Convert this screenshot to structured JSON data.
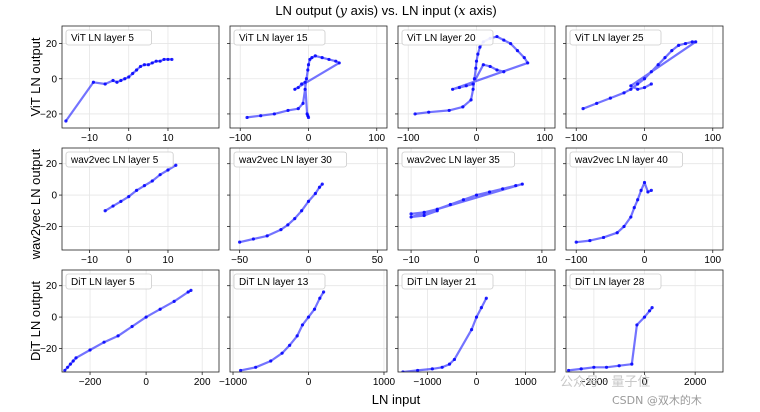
{
  "chart_data": {
    "type": "scatter",
    "title": "LN output (y axis) vs. LN input (x axis)",
    "title_parts": [
      "LN output (",
      "y",
      " axis) vs. LN input (",
      "x",
      " axis)"
    ],
    "xlabel": "LN input",
    "row_labels": [
      "ViT LN output",
      "wav2vec LN output",
      "DiT LN output"
    ],
    "series_color": "#0000ff",
    "panels": [
      {
        "label": "ViT LN layer 5",
        "xlim": [
          -17,
          23
        ],
        "ylim": [
          -28,
          30
        ],
        "xticks": [
          -10,
          0,
          10
        ],
        "yticks": [
          -20,
          0,
          20
        ],
        "show_yticks": true,
        "points": [
          [
            -16,
            -24
          ],
          [
            -9,
            -2
          ],
          [
            -6,
            -3
          ],
          [
            -4,
            -1
          ],
          [
            -3,
            -2
          ],
          [
            -2,
            -1
          ],
          [
            -1,
            0
          ],
          [
            0,
            1
          ],
          [
            1,
            3
          ],
          [
            2,
            5
          ],
          [
            3,
            7
          ],
          [
            4,
            8
          ],
          [
            5,
            8
          ],
          [
            6,
            9
          ],
          [
            7,
            10
          ],
          [
            8,
            10
          ],
          [
            9,
            11
          ],
          [
            10,
            11
          ],
          [
            11,
            11
          ]
        ]
      },
      {
        "label": "ViT LN layer 15",
        "xlim": [
          -115,
          115
        ],
        "ylim": [
          -28,
          30
        ],
        "xticks": [
          -100,
          0,
          100
        ],
        "yticks": [
          -20,
          0,
          20
        ],
        "show_yticks": false,
        "points": [
          [
            -90,
            -22
          ],
          [
            -70,
            -21
          ],
          [
            -50,
            -20
          ],
          [
            -30,
            -18
          ],
          [
            -15,
            -17
          ],
          [
            -8,
            -14
          ],
          [
            -5,
            -6
          ],
          [
            -3,
            0
          ],
          [
            -1,
            5
          ],
          [
            0,
            8
          ],
          [
            2,
            11
          ],
          [
            5,
            12
          ],
          [
            10,
            13
          ],
          [
            20,
            12
          ],
          [
            30,
            11
          ],
          [
            40,
            10
          ],
          [
            45,
            9
          ],
          [
            -20,
            -6
          ],
          [
            -15,
            -5
          ],
          [
            -10,
            -3
          ],
          [
            -5,
            -2
          ],
          [
            -2,
            -20
          ],
          [
            -1,
            -21
          ],
          [
            0,
            -22
          ]
        ]
      },
      {
        "label": "ViT LN layer 20",
        "xlim": [
          -115,
          115
        ],
        "ylim": [
          -28,
          30
        ],
        "xticks": [
          -100,
          0,
          100
        ],
        "yticks": [
          -20,
          0,
          20
        ],
        "show_yticks": false,
        "points": [
          [
            -90,
            -20
          ],
          [
            -70,
            -19
          ],
          [
            -40,
            -18
          ],
          [
            -20,
            -16
          ],
          [
            -8,
            -12
          ],
          [
            -5,
            -6
          ],
          [
            -3,
            0
          ],
          [
            -1,
            6
          ],
          [
            0,
            10
          ],
          [
            2,
            14
          ],
          [
            5,
            18
          ],
          [
            10,
            21
          ],
          [
            20,
            23
          ],
          [
            30,
            24
          ],
          [
            40,
            22
          ],
          [
            50,
            20
          ],
          [
            60,
            16
          ],
          [
            70,
            12
          ],
          [
            75,
            9
          ],
          [
            -35,
            -6
          ],
          [
            -25,
            -5
          ],
          [
            -15,
            -4
          ],
          [
            -5,
            -3
          ],
          [
            10,
            8
          ],
          [
            20,
            7
          ],
          [
            30,
            5
          ],
          [
            40,
            4
          ]
        ]
      },
      {
        "label": "ViT LN layer 25",
        "xlim": [
          -115,
          115
        ],
        "ylim": [
          -28,
          30
        ],
        "xticks": [
          -100,
          0,
          100
        ],
        "yticks": [
          -20,
          0,
          20
        ],
        "show_yticks": false,
        "points": [
          [
            -90,
            -17
          ],
          [
            -70,
            -14
          ],
          [
            -50,
            -11
          ],
          [
            -30,
            -8
          ],
          [
            -20,
            -6
          ],
          [
            -10,
            -3
          ],
          [
            0,
            0
          ],
          [
            10,
            4
          ],
          [
            20,
            8
          ],
          [
            30,
            12
          ],
          [
            40,
            16
          ],
          [
            50,
            19
          ],
          [
            60,
            20
          ],
          [
            70,
            21
          ],
          [
            75,
            21
          ],
          [
            -20,
            -4
          ],
          [
            -10,
            -6
          ],
          [
            0,
            -5
          ],
          [
            10,
            -3
          ]
        ]
      },
      {
        "label": "wav2vec LN layer 5",
        "xlim": [
          -17,
          23
        ],
        "ylim": [
          -35,
          30
        ],
        "xticks": [
          -10,
          0,
          10
        ],
        "yticks": [
          -20,
          0,
          20
        ],
        "show_yticks": true,
        "points": [
          [
            -6,
            -10
          ],
          [
            -4,
            -7
          ],
          [
            -2,
            -4
          ],
          [
            0,
            -1
          ],
          [
            2,
            3
          ],
          [
            4,
            6
          ],
          [
            6,
            9
          ],
          [
            8,
            13
          ],
          [
            10,
            16
          ],
          [
            12,
            19
          ]
        ]
      },
      {
        "label": "wav2vec LN layer 30",
        "xlim": [
          -57,
          57
        ],
        "ylim": [
          -35,
          30
        ],
        "xticks": [
          -50,
          0,
          50
        ],
        "yticks": [
          -20,
          0,
          20
        ],
        "show_yticks": false,
        "points": [
          [
            -50,
            -30
          ],
          [
            -40,
            -28
          ],
          [
            -30,
            -26
          ],
          [
            -20,
            -22
          ],
          [
            -15,
            -19
          ],
          [
            -10,
            -15
          ],
          [
            -5,
            -10
          ],
          [
            0,
            -4
          ],
          [
            5,
            1
          ],
          [
            8,
            5
          ],
          [
            10,
            7
          ]
        ]
      },
      {
        "label": "wav2vec LN layer 35",
        "xlim": [
          -12,
          12
        ],
        "ylim": [
          -35,
          30
        ],
        "xticks": [
          -10,
          0,
          10
        ],
        "yticks": [
          -20,
          0,
          20
        ],
        "show_yticks": false,
        "points": [
          [
            -10,
            -12
          ],
          [
            -8,
            -11
          ],
          [
            -6,
            -9
          ],
          [
            -4,
            -6
          ],
          [
            -2,
            -3
          ],
          [
            0,
            0
          ],
          [
            2,
            2
          ],
          [
            4,
            4
          ],
          [
            6,
            6
          ],
          [
            7,
            7
          ],
          [
            -10,
            -14
          ],
          [
            -8,
            -13
          ],
          [
            -6,
            -10
          ]
        ]
      },
      {
        "label": "wav2vec LN layer 40",
        "xlim": [
          -115,
          115
        ],
        "ylim": [
          -35,
          30
        ],
        "xticks": [
          -100,
          0,
          100
        ],
        "yticks": [
          -20,
          0,
          20
        ],
        "show_yticks": false,
        "points": [
          [
            -100,
            -30
          ],
          [
            -80,
            -29
          ],
          [
            -60,
            -27
          ],
          [
            -40,
            -24
          ],
          [
            -30,
            -20
          ],
          [
            -20,
            -14
          ],
          [
            -15,
            -8
          ],
          [
            -10,
            -3
          ],
          [
            -5,
            3
          ],
          [
            0,
            8
          ],
          [
            5,
            2
          ],
          [
            10,
            3
          ]
        ]
      },
      {
        "label": "DiT LN layer 5",
        "xlim": [
          -300,
          260
        ],
        "ylim": [
          -35,
          30
        ],
        "xticks": [
          -200,
          0,
          200
        ],
        "yticks": [
          -20,
          0,
          20
        ],
        "show_yticks": true,
        "points": [
          [
            -290,
            -34
          ],
          [
            -280,
            -32
          ],
          [
            -270,
            -30
          ],
          [
            -260,
            -28
          ],
          [
            -250,
            -26
          ],
          [
            -200,
            -21
          ],
          [
            -150,
            -16
          ],
          [
            -100,
            -12
          ],
          [
            -50,
            -6
          ],
          [
            0,
            0
          ],
          [
            50,
            5
          ],
          [
            100,
            10
          ],
          [
            150,
            16
          ],
          [
            160,
            17
          ]
        ]
      },
      {
        "label": "DiT LN layer 13",
        "xlim": [
          -1040,
          1040
        ],
        "ylim": [
          -35,
          30
        ],
        "xticks": [
          -1000,
          0,
          1000
        ],
        "yticks": [
          -20,
          0,
          20
        ],
        "show_yticks": false,
        "points": [
          [
            -900,
            -34
          ],
          [
            -700,
            -32
          ],
          [
            -500,
            -28
          ],
          [
            -350,
            -23
          ],
          [
            -250,
            -18
          ],
          [
            -150,
            -12
          ],
          [
            -80,
            -5
          ],
          [
            0,
            0
          ],
          [
            80,
            5
          ],
          [
            150,
            12
          ],
          [
            200,
            16
          ]
        ]
      },
      {
        "label": "DiT LN layer 21",
        "xlim": [
          -1600,
          1600
        ],
        "ylim": [
          -35,
          30
        ],
        "xticks": [
          -1000,
          0,
          1000
        ],
        "yticks": [
          -20,
          0,
          20
        ],
        "show_yticks": false,
        "points": [
          [
            -1500,
            -35
          ],
          [
            -1200,
            -34
          ],
          [
            -900,
            -33
          ],
          [
            -700,
            -32
          ],
          [
            -550,
            -30
          ],
          [
            -450,
            -27
          ],
          [
            -100,
            -8
          ],
          [
            0,
            0
          ],
          [
            100,
            6
          ],
          [
            200,
            12
          ]
        ]
      },
      {
        "label": "DiT LN layer 28",
        "xlim": [
          -3100,
          3100
        ],
        "ylim": [
          -35,
          30
        ],
        "xticks": [
          -2000,
          0,
          2000
        ],
        "yticks": [
          -20,
          0,
          20
        ],
        "show_yticks": false,
        "points": [
          [
            -3000,
            -34
          ],
          [
            -2500,
            -33
          ],
          [
            -2000,
            -32
          ],
          [
            -1500,
            -32
          ],
          [
            -1000,
            -31
          ],
          [
            -500,
            -30
          ],
          [
            -300,
            -5
          ],
          [
            0,
            0
          ],
          [
            200,
            4
          ],
          [
            300,
            6
          ]
        ]
      }
    ]
  },
  "watermark": "公众号 · 量子位",
  "credit": "CSDN @双木的木"
}
